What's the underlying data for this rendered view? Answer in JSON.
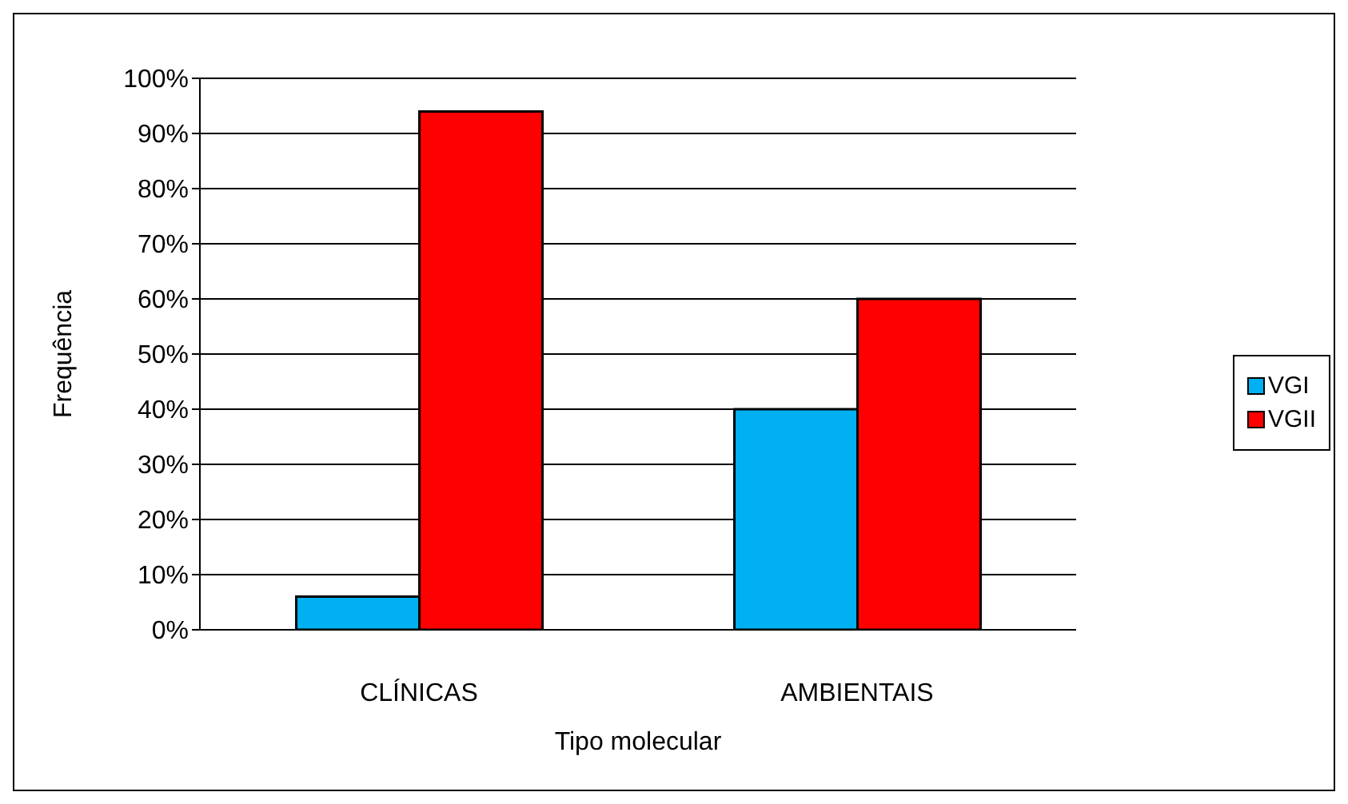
{
  "chart_data": {
    "type": "bar",
    "xlabel": "Tipo molecular",
    "ylabel": "Frequência",
    "categories": [
      "CLÍNICAS",
      "AMBIENTAIS"
    ],
    "series": [
      {
        "name": "VGI",
        "color": "#00b0f0",
        "values": [
          6,
          40
        ]
      },
      {
        "name": "VGII",
        "color": "#ff0000",
        "values": [
          94,
          60
        ]
      }
    ],
    "ylim": [
      0,
      100
    ],
    "yticks": [
      {
        "value": 0,
        "label": "0%"
      },
      {
        "value": 10,
        "label": "10%"
      },
      {
        "value": 20,
        "label": "20%"
      },
      {
        "value": 30,
        "label": "30%"
      },
      {
        "value": 40,
        "label": "40%"
      },
      {
        "value": 50,
        "label": "50%"
      },
      {
        "value": 60,
        "label": "60%"
      },
      {
        "value": 70,
        "label": "70%"
      },
      {
        "value": 80,
        "label": "80%"
      },
      {
        "value": 90,
        "label": "90%"
      },
      {
        "value": 100,
        "label": "100%"
      }
    ],
    "grid": "y",
    "legend": "right"
  }
}
